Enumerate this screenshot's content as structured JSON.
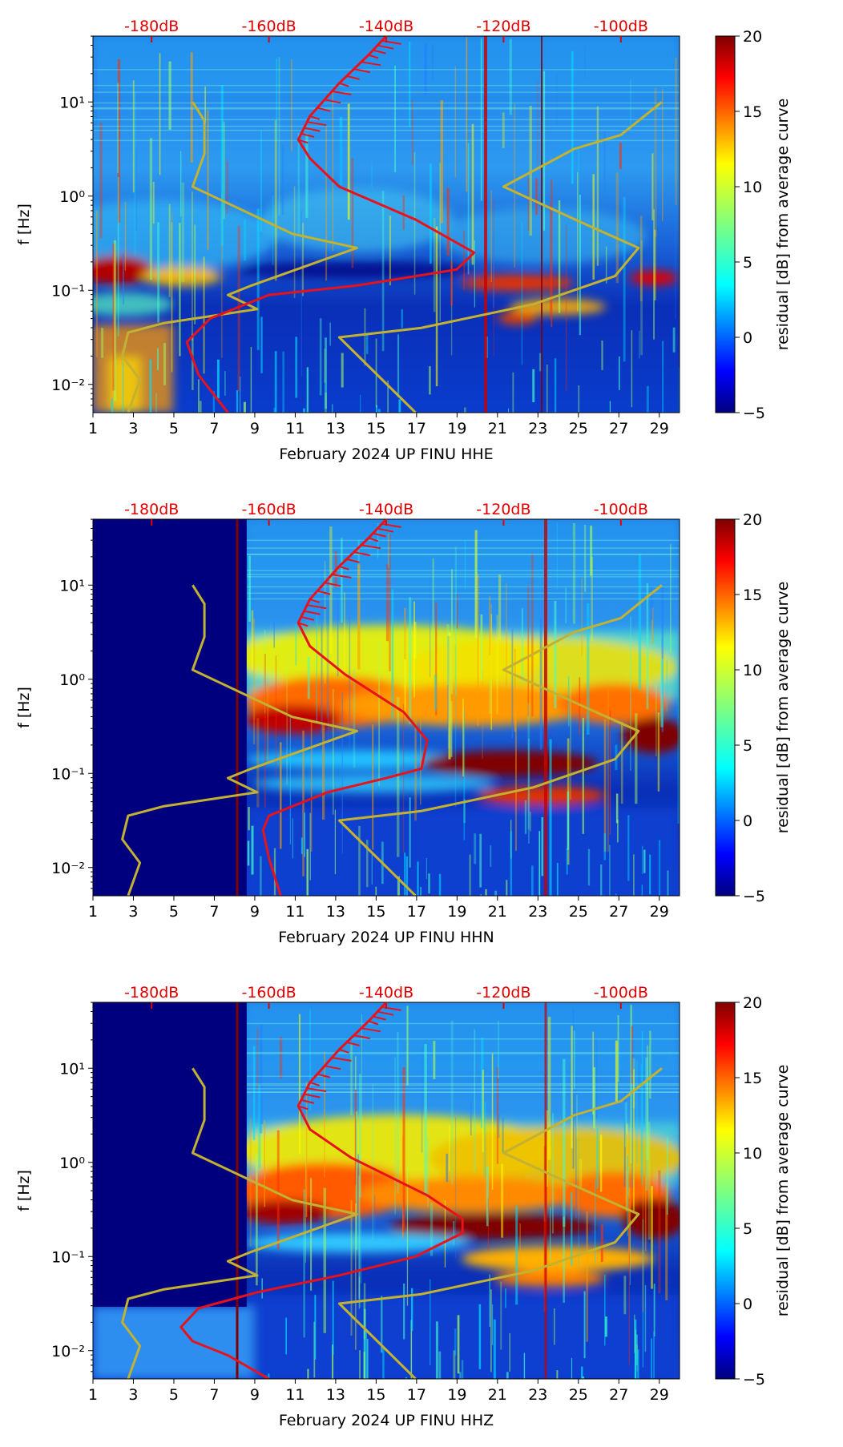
{
  "chart_data": [
    {
      "type": "heatmap",
      "id": "hhe",
      "xlabel": "February 2024 UP FINU  HHE",
      "ylabel": "f [Hz]",
      "x_ticks": [
        "1",
        "3",
        "5",
        "7",
        "9",
        "11",
        "13",
        "15",
        "17",
        "19",
        "21",
        "23",
        "25",
        "27",
        "29"
      ],
      "x_range": [
        1,
        30
      ],
      "y_ticks": [
        "10⁻²",
        "10⁻¹",
        "10⁰",
        "10¹"
      ],
      "y_range_log10": [
        -2.3,
        1.7
      ],
      "top_ticks": [
        "-180dB",
        "-160dB",
        "-140dB",
        "-120dB",
        "-100dB"
      ],
      "top_range_db": [
        -190,
        -90
      ],
      "colorbar_label": "residual [dB] from average curve",
      "colorbar_ticks": [
        "20",
        "15",
        "10",
        "5",
        "0",
        "−5"
      ],
      "colorbar_range": [
        -5,
        20
      ],
      "blank_until_day": null,
      "red_curve": [
        [
          -167,
          -2.3
        ],
        [
          -172,
          -1.9
        ],
        [
          -174,
          -1.55
        ],
        [
          -170,
          -1.3
        ],
        [
          -160,
          -1.05
        ],
        [
          -145,
          -0.95
        ],
        [
          -128,
          -0.78
        ],
        [
          -125,
          -0.6
        ],
        [
          -135,
          -0.25
        ],
        [
          -148,
          0.1
        ],
        [
          -153,
          0.4
        ],
        [
          -155,
          0.6
        ],
        [
          -153,
          0.85
        ],
        [
          -148,
          1.2
        ],
        [
          -143,
          1.5
        ],
        [
          -140,
          1.7
        ]
      ],
      "yellow_curves": [
        [
          [
            -184,
            -2.3
          ],
          [
            -182,
            -1.95
          ],
          [
            -185,
            -1.7
          ],
          [
            -184,
            -1.45
          ],
          [
            -178,
            -1.35
          ],
          [
            -162,
            -1.2
          ],
          [
            -167,
            -1.05
          ],
          [
            -163,
            -0.95
          ],
          [
            -145,
            -0.55
          ],
          [
            -156,
            -0.4
          ],
          [
            -173,
            0.1
          ],
          [
            -171,
            0.45
          ],
          [
            -171,
            0.8
          ],
          [
            -173,
            1.0
          ]
        ],
        [
          [
            -135,
            -2.3
          ],
          [
            -148,
            -1.5
          ],
          [
            -134,
            -1.4
          ],
          [
            -115,
            -1.15
          ],
          [
            -101,
            -0.85
          ],
          [
            -97,
            -0.55
          ],
          [
            -106,
            -0.3
          ],
          [
            -120,
            0.1
          ],
          [
            -108,
            0.5
          ],
          [
            -100,
            0.65
          ],
          [
            -93,
            1.0
          ]
        ]
      ]
    },
    {
      "type": "heatmap",
      "id": "hhn",
      "xlabel": "February 2024 UP FINU  HHN",
      "ylabel": "f [Hz]",
      "x_ticks": [
        "1",
        "3",
        "5",
        "7",
        "9",
        "11",
        "13",
        "15",
        "17",
        "19",
        "21",
        "23",
        "25",
        "27",
        "29"
      ],
      "x_range": [
        1,
        30
      ],
      "y_ticks": [
        "10⁻²",
        "10⁻¹",
        "10⁰",
        "10¹"
      ],
      "y_range_log10": [
        -2.3,
        1.7
      ],
      "top_ticks": [
        "-180dB",
        "-160dB",
        "-140dB",
        "-120dB",
        "-100dB"
      ],
      "top_range_db": [
        -190,
        -90
      ],
      "colorbar_label": "residual [dB] from average curve",
      "colorbar_ticks": [
        "20",
        "15",
        "10",
        "5",
        "0",
        "−5"
      ],
      "colorbar_range": [
        -5,
        20
      ],
      "blank_until_day": 8.6,
      "red_curve": [
        [
          -158,
          -2.3
        ],
        [
          -160,
          -1.9
        ],
        [
          -161,
          -1.6
        ],
        [
          -160,
          -1.45
        ],
        [
          -150,
          -1.2
        ],
        [
          -140,
          -1.05
        ],
        [
          -134,
          -0.95
        ],
        [
          -133,
          -0.65
        ],
        [
          -137,
          -0.35
        ],
        [
          -147,
          0.05
        ],
        [
          -153,
          0.35
        ],
        [
          -155,
          0.6
        ],
        [
          -153,
          0.85
        ],
        [
          -148,
          1.2
        ],
        [
          -143,
          1.5
        ],
        [
          -140,
          1.7
        ]
      ],
      "yellow_curves": [
        [
          [
            -184,
            -2.3
          ],
          [
            -182,
            -1.95
          ],
          [
            -185,
            -1.7
          ],
          [
            -184,
            -1.45
          ],
          [
            -178,
            -1.35
          ],
          [
            -162,
            -1.2
          ],
          [
            -167,
            -1.05
          ],
          [
            -163,
            -0.95
          ],
          [
            -145,
            -0.55
          ],
          [
            -156,
            -0.4
          ],
          [
            -173,
            0.1
          ],
          [
            -171,
            0.45
          ],
          [
            -171,
            0.8
          ],
          [
            -173,
            1.0
          ]
        ],
        [
          [
            -135,
            -2.3
          ],
          [
            -148,
            -1.5
          ],
          [
            -134,
            -1.4
          ],
          [
            -115,
            -1.15
          ],
          [
            -101,
            -0.85
          ],
          [
            -97,
            -0.55
          ],
          [
            -106,
            -0.3
          ],
          [
            -120,
            0.1
          ],
          [
            -108,
            0.5
          ],
          [
            -100,
            0.65
          ],
          [
            -93,
            1.0
          ]
        ]
      ]
    },
    {
      "type": "heatmap",
      "id": "hhz",
      "xlabel": "February 2024 UP FINU  HHZ",
      "ylabel": "f [Hz]",
      "x_ticks": [
        "1",
        "3",
        "5",
        "7",
        "9",
        "11",
        "13",
        "15",
        "17",
        "19",
        "21",
        "23",
        "25",
        "27",
        "29"
      ],
      "x_range": [
        1,
        30
      ],
      "y_ticks": [
        "10⁻²",
        "10⁻¹",
        "10⁰",
        "10¹"
      ],
      "y_range_log10": [
        -2.3,
        1.7
      ],
      "top_ticks": [
        "-180dB",
        "-160dB",
        "-140dB",
        "-120dB",
        "-100dB"
      ],
      "top_range_db": [
        -190,
        -90
      ],
      "colorbar_label": "residual [dB] from average curve",
      "colorbar_ticks": [
        "20",
        "15",
        "10",
        "5",
        "0",
        "−5"
      ],
      "colorbar_range": [
        -5,
        20
      ],
      "blank_until_day": 8.6,
      "red_curve": [
        [
          -160,
          -2.3
        ],
        [
          -167,
          -2.05
        ],
        [
          -173,
          -1.9
        ],
        [
          -175,
          -1.75
        ],
        [
          -172,
          -1.55
        ],
        [
          -162,
          -1.38
        ],
        [
          -148,
          -1.2
        ],
        [
          -135,
          -1.0
        ],
        [
          -127,
          -0.75
        ],
        [
          -127,
          -0.6
        ],
        [
          -133,
          -0.35
        ],
        [
          -146,
          0.05
        ],
        [
          -153,
          0.35
        ],
        [
          -155,
          0.6
        ],
        [
          -153,
          0.85
        ],
        [
          -148,
          1.2
        ],
        [
          -143,
          1.5
        ],
        [
          -140,
          1.7
        ]
      ],
      "yellow_curves": [
        [
          [
            -184,
            -2.3
          ],
          [
            -182,
            -1.95
          ],
          [
            -185,
            -1.7
          ],
          [
            -184,
            -1.45
          ],
          [
            -178,
            -1.35
          ],
          [
            -162,
            -1.2
          ],
          [
            -167,
            -1.05
          ],
          [
            -163,
            -0.95
          ],
          [
            -145,
            -0.55
          ],
          [
            -156,
            -0.4
          ],
          [
            -173,
            0.1
          ],
          [
            -171,
            0.45
          ],
          [
            -171,
            0.8
          ],
          [
            -173,
            1.0
          ]
        ],
        [
          [
            -135,
            -2.3
          ],
          [
            -148,
            -1.5
          ],
          [
            -134,
            -1.4
          ],
          [
            -115,
            -1.15
          ],
          [
            -101,
            -0.85
          ],
          [
            -97,
            -0.55
          ],
          [
            -106,
            -0.3
          ],
          [
            -120,
            0.1
          ],
          [
            -108,
            0.5
          ],
          [
            -100,
            0.65
          ],
          [
            -93,
            1.0
          ]
        ]
      ]
    }
  ],
  "colors": {
    "red_curve": "#e8121a",
    "yellow_curve": "#c3b231",
    "top_tick_text": "#e00000",
    "axis": "#000000"
  }
}
